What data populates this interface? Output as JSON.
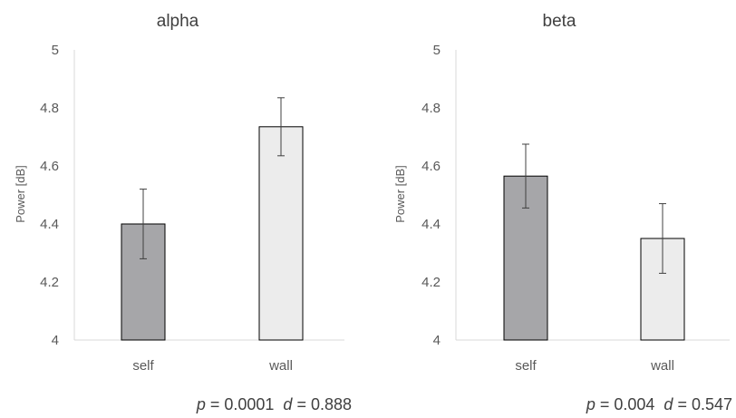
{
  "chart_data": [
    {
      "type": "bar",
      "title": "alpha",
      "ylabel": "Power [dB]",
      "categories": [
        "self",
        "wall"
      ],
      "values": [
        4.4,
        4.735
      ],
      "errors": [
        0.12,
        0.1
      ],
      "bar_colors": [
        "#a6a6a9",
        "#ececec"
      ],
      "ylim": [
        4,
        5
      ],
      "yticks": [
        "4",
        "4.2",
        "4.4",
        "4.6",
        "4.8",
        "5"
      ],
      "grid": false,
      "stats": {
        "p_label": "p",
        "p_text": " = 0.0001  ",
        "d_label": "d",
        "d_text": " = 0.888"
      }
    },
    {
      "type": "bar",
      "title": "beta",
      "ylabel": "Power [dB]",
      "categories": [
        "self",
        "wall"
      ],
      "values": [
        4.565,
        4.35
      ],
      "errors": [
        0.11,
        0.12
      ],
      "bar_colors": [
        "#a6a6a9",
        "#ececec"
      ],
      "ylim": [
        4,
        5
      ],
      "yticks": [
        "4",
        "4.2",
        "4.4",
        "4.6",
        "4.8",
        "5"
      ],
      "grid": false,
      "stats": {
        "p_label": "p",
        "p_text": " = 0.004  ",
        "d_label": "d",
        "d_text": " = 0.547"
      }
    }
  ]
}
